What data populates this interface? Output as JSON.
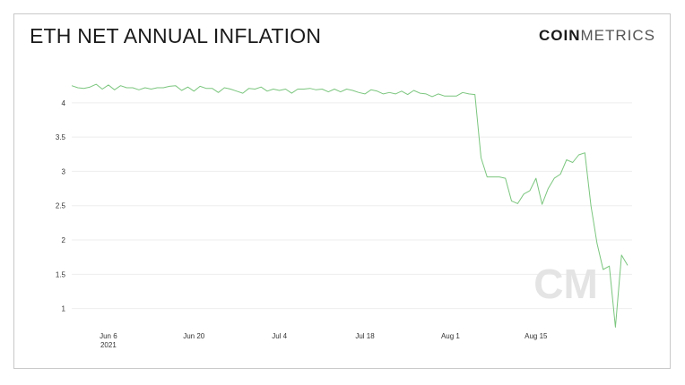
{
  "header": {
    "title": "ETH NET ANNUAL INFLATION",
    "logo_bold": "COIN",
    "logo_light": "METRICS"
  },
  "watermark": "CM",
  "colors": {
    "line": "#7bc67e",
    "grid": "#eeeeee",
    "watermark": "#e4e4e4"
  },
  "chart_data": {
    "type": "line",
    "title": "ETH NET ANNUAL INFLATION",
    "xlabel": "",
    "ylabel": "",
    "ylim": [
      0.8,
      4.35
    ],
    "y_ticks": [
      {
        "value": 1,
        "label": "1"
      },
      {
        "value": 1.5,
        "label": "1.5"
      },
      {
        "value": 2,
        "label": "2"
      },
      {
        "value": 2.5,
        "label": "2.5"
      },
      {
        "value": 3,
        "label": "3"
      },
      {
        "value": 3.5,
        "label": "3.5"
      },
      {
        "value": 4,
        "label": "4"
      }
    ],
    "x_ticks": [
      {
        "date": "2021-06-06",
        "label": "Jun 6",
        "sublabel": "2021"
      },
      {
        "date": "2021-06-20",
        "label": "Jun 20",
        "sublabel": ""
      },
      {
        "date": "2021-07-04",
        "label": "Jul 4",
        "sublabel": ""
      },
      {
        "date": "2021-07-18",
        "label": "Jul 18",
        "sublabel": ""
      },
      {
        "date": "2021-08-01",
        "label": "Aug 1",
        "sublabel": ""
      },
      {
        "date": "2021-08-15",
        "label": "Aug 15",
        "sublabel": ""
      }
    ],
    "grid": true,
    "legend": "none",
    "series": [
      {
        "values": [
          [
            "2021-05-31",
            4.25
          ],
          [
            "2021-06-01",
            4.22
          ],
          [
            "2021-06-02",
            4.21
          ],
          [
            "2021-06-03",
            4.23
          ],
          [
            "2021-06-04",
            4.27
          ],
          [
            "2021-06-05",
            4.2
          ],
          [
            "2021-06-06",
            4.26
          ],
          [
            "2021-06-07",
            4.19
          ],
          [
            "2021-06-08",
            4.25
          ],
          [
            "2021-06-09",
            4.22
          ],
          [
            "2021-06-10",
            4.22
          ],
          [
            "2021-06-11",
            4.19
          ],
          [
            "2021-06-12",
            4.22
          ],
          [
            "2021-06-13",
            4.2
          ],
          [
            "2021-06-14",
            4.22
          ],
          [
            "2021-06-15",
            4.22
          ],
          [
            "2021-06-16",
            4.24
          ],
          [
            "2021-06-17",
            4.25
          ],
          [
            "2021-06-18",
            4.18
          ],
          [
            "2021-06-19",
            4.23
          ],
          [
            "2021-06-20",
            4.17
          ],
          [
            "2021-06-21",
            4.24
          ],
          [
            "2021-06-22",
            4.21
          ],
          [
            "2021-06-23",
            4.21
          ],
          [
            "2021-06-24",
            4.15
          ],
          [
            "2021-06-25",
            4.22
          ],
          [
            "2021-06-26",
            4.2
          ],
          [
            "2021-06-27",
            4.17
          ],
          [
            "2021-06-28",
            4.14
          ],
          [
            "2021-06-29",
            4.21
          ],
          [
            "2021-06-30",
            4.2
          ],
          [
            "2021-07-01",
            4.23
          ],
          [
            "2021-07-02",
            4.17
          ],
          [
            "2021-07-03",
            4.2
          ],
          [
            "2021-07-04",
            4.18
          ],
          [
            "2021-07-05",
            4.2
          ],
          [
            "2021-07-06",
            4.14
          ],
          [
            "2021-07-07",
            4.2
          ],
          [
            "2021-07-08",
            4.2
          ],
          [
            "2021-07-09",
            4.21
          ],
          [
            "2021-07-10",
            4.19
          ],
          [
            "2021-07-11",
            4.2
          ],
          [
            "2021-07-12",
            4.16
          ],
          [
            "2021-07-13",
            4.2
          ],
          [
            "2021-07-14",
            4.16
          ],
          [
            "2021-07-15",
            4.2
          ],
          [
            "2021-07-16",
            4.18
          ],
          [
            "2021-07-17",
            4.15
          ],
          [
            "2021-07-18",
            4.13
          ],
          [
            "2021-07-19",
            4.19
          ],
          [
            "2021-07-20",
            4.17
          ],
          [
            "2021-07-21",
            4.13
          ],
          [
            "2021-07-22",
            4.15
          ],
          [
            "2021-07-23",
            4.13
          ],
          [
            "2021-07-24",
            4.17
          ],
          [
            "2021-07-25",
            4.12
          ],
          [
            "2021-07-26",
            4.18
          ],
          [
            "2021-07-27",
            4.14
          ],
          [
            "2021-07-28",
            4.13
          ],
          [
            "2021-07-29",
            4.09
          ],
          [
            "2021-07-30",
            4.13
          ],
          [
            "2021-07-31",
            4.1
          ],
          [
            "2021-08-01",
            4.1
          ],
          [
            "2021-08-02",
            4.1
          ],
          [
            "2021-08-03",
            4.15
          ],
          [
            "2021-08-04",
            4.13
          ],
          [
            "2021-08-05",
            4.12
          ],
          [
            "2021-08-06",
            3.2
          ],
          [
            "2021-08-07",
            2.92
          ],
          [
            "2021-08-08",
            2.92
          ],
          [
            "2021-08-09",
            2.92
          ],
          [
            "2021-08-10",
            2.9
          ],
          [
            "2021-08-11",
            2.57
          ],
          [
            "2021-08-12",
            2.53
          ],
          [
            "2021-08-13",
            2.67
          ],
          [
            "2021-08-14",
            2.72
          ],
          [
            "2021-08-15",
            2.9
          ],
          [
            "2021-08-16",
            2.52
          ],
          [
            "2021-08-17",
            2.75
          ],
          [
            "2021-08-18",
            2.9
          ],
          [
            "2021-08-19",
            2.96
          ],
          [
            "2021-08-20",
            3.17
          ],
          [
            "2021-08-21",
            3.13
          ],
          [
            "2021-08-22",
            3.24
          ],
          [
            "2021-08-23",
            3.27
          ],
          [
            "2021-08-24",
            2.5
          ],
          [
            "2021-08-25",
            1.95
          ],
          [
            "2021-08-26",
            1.57
          ],
          [
            "2021-08-27",
            1.62
          ],
          [
            "2021-08-28",
            0.73
          ],
          [
            "2021-08-29",
            1.78
          ],
          [
            "2021-08-30",
            1.63
          ]
        ]
      }
    ]
  }
}
